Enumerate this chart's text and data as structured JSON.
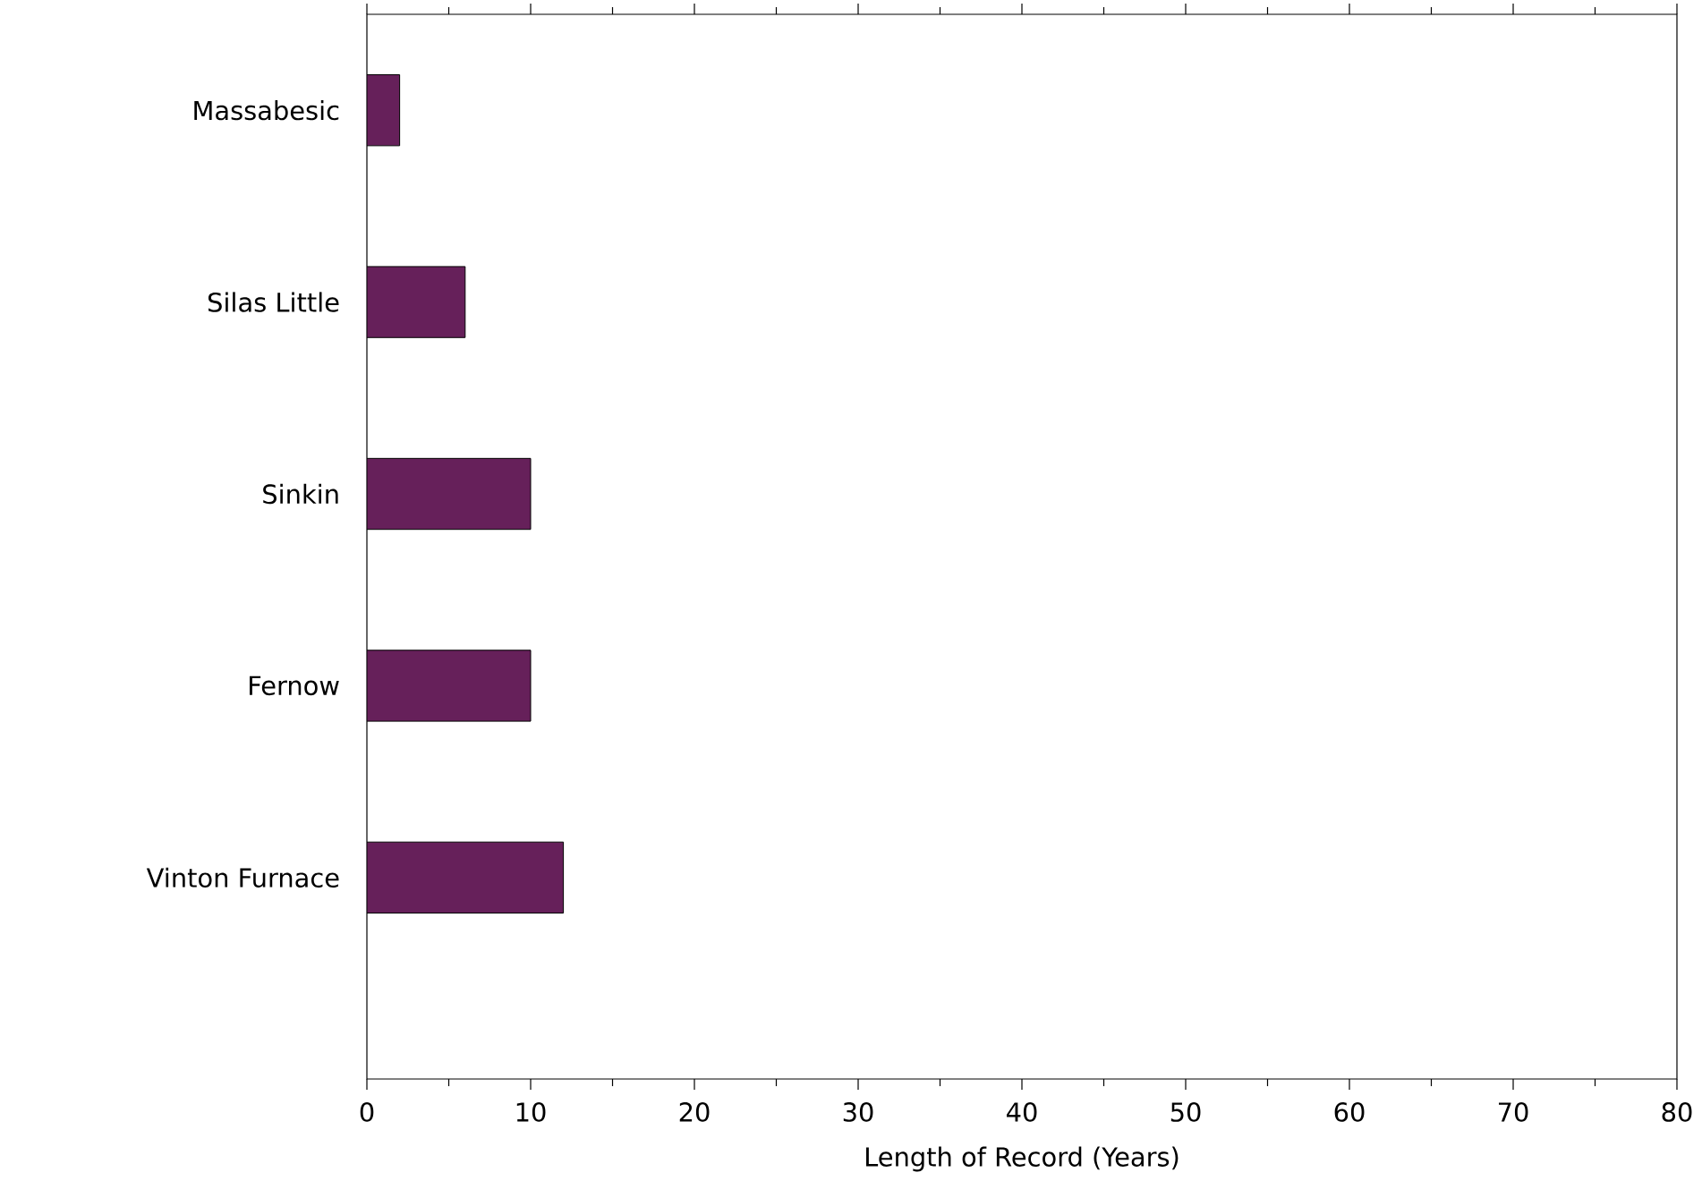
{
  "chart_data": {
    "type": "bar",
    "orientation": "horizontal",
    "xlabel": "Length of Record (Years)",
    "categories": [
      "Massabesic",
      "Silas Little",
      "Sinkin",
      "Fernow",
      "Vinton Furnace"
    ],
    "values": [
      2,
      6,
      10,
      10,
      12
    ],
    "color": "#66205a",
    "xlim": [
      0,
      80
    ],
    "xticks": [
      0,
      10,
      20,
      30,
      40,
      50,
      60,
      70,
      80
    ]
  }
}
